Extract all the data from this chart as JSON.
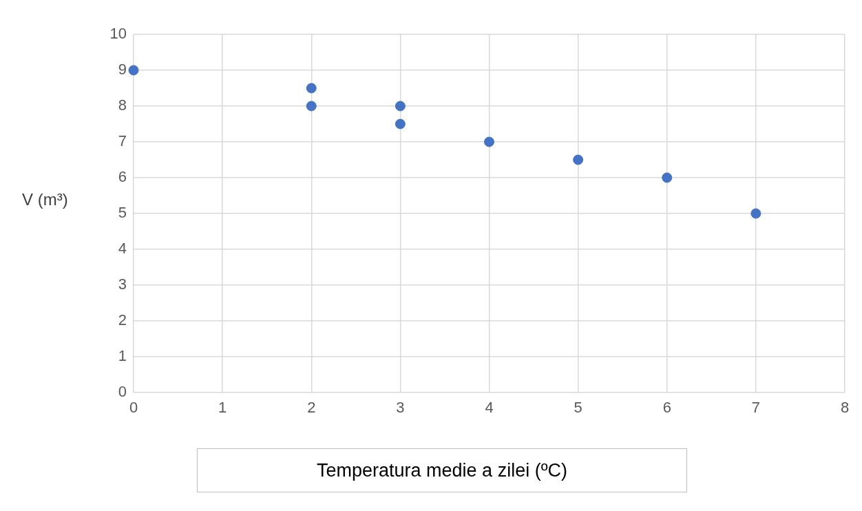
{
  "chart_data": {
    "type": "scatter",
    "xlabel": "Temperatura medie a zilei (ºC)",
    "ylabel": "V (m³)",
    "series": [
      {
        "x": [
          0,
          2,
          2,
          3,
          3,
          4,
          5,
          6,
          7
        ],
        "values": [
          9,
          8.5,
          8,
          8,
          7.5,
          7,
          6.5,
          6,
          5
        ],
        "color": "#4472c4"
      }
    ],
    "xlim": [
      0,
      8
    ],
    "xticks": [
      0,
      1,
      2,
      3,
      4,
      5,
      6,
      7,
      8
    ],
    "ylim": [
      0,
      10
    ],
    "yticks": [
      0,
      1,
      2,
      3,
      4,
      5,
      6,
      7,
      8,
      9,
      10
    ],
    "grid": true,
    "legend": false,
    "marker": "circle"
  }
}
